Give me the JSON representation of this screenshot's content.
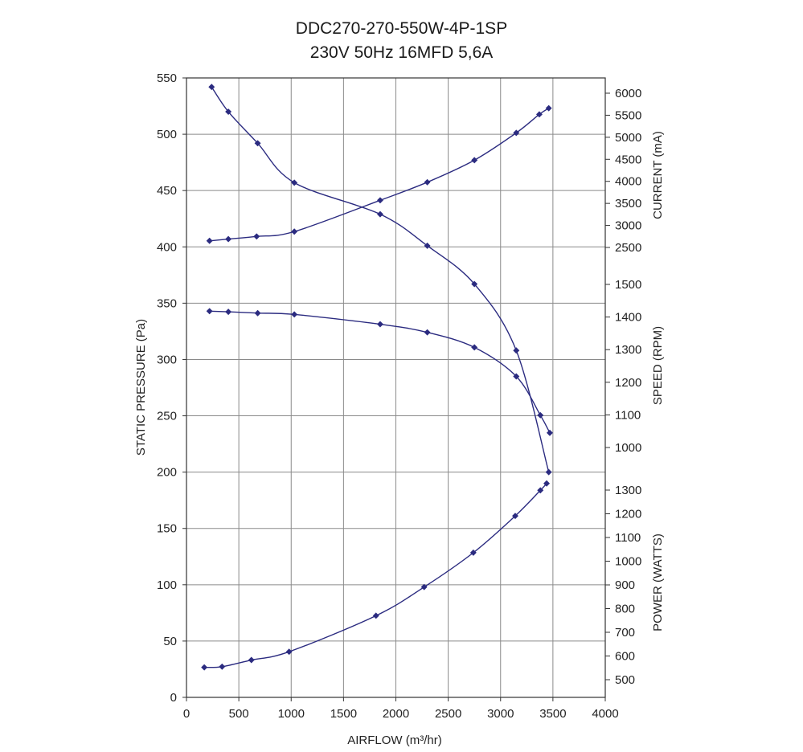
{
  "chart_data": {
    "type": "line",
    "title": "DDC270-270-550W-4P-1SP",
    "subtitle": "230V 50Hz 16MFD 5,6A",
    "xlabel": "AIRFLOW (m³/hr)",
    "ylabel": "STATIC PRESSURE (Pa)",
    "xlim": [
      0,
      4000
    ],
    "xticks": [
      0,
      500,
      1000,
      1500,
      2000,
      2500,
      3000,
      3500,
      4000
    ],
    "ylim": [
      0,
      550
    ],
    "yticks": [
      0,
      50,
      100,
      150,
      200,
      250,
      300,
      350,
      400,
      450,
      500,
      550
    ],
    "grid": true,
    "line_color": "#2b2b80",
    "right_axes": [
      {
        "label": "CURRENT (mA)",
        "range": [
          2500,
          6000
        ],
        "ticks": [
          2500,
          3000,
          3500,
          4000,
          4500,
          5000,
          5500,
          6000
        ]
      },
      {
        "label": "SPEED (RPM)",
        "range": [
          1000,
          1500
        ],
        "ticks": [
          1000,
          1100,
          1200,
          1300,
          1400,
          1500
        ]
      },
      {
        "label": "POWER (WATTS)",
        "range": [
          500,
          1300
        ],
        "ticks": [
          500,
          600,
          700,
          800,
          900,
          1000,
          1100,
          1200,
          1300
        ]
      }
    ],
    "series": [
      {
        "axis": "left",
        "x": [
          240,
          400,
          680,
          1030,
          1850,
          2300,
          2750,
          3150,
          3460
        ],
        "y": [
          542,
          520,
          492,
          457,
          429,
          401,
          367,
          308,
          200
        ]
      },
      {
        "axis": "current",
        "x": [
          220,
          400,
          670,
          1030,
          1850,
          2300,
          2750,
          3150,
          3370,
          3460
        ],
        "y": [
          2650,
          2690,
          2750,
          2860,
          3570,
          3980,
          4480,
          5100,
          5520,
          5660
        ]
      },
      {
        "axis": "speed",
        "x": [
          220,
          400,
          680,
          1030,
          1850,
          2300,
          2750,
          3150,
          3380,
          3470
        ],
        "y": [
          1418,
          1416,
          1412,
          1408,
          1378,
          1353,
          1307,
          1218,
          1099,
          1045
        ]
      },
      {
        "axis": "power",
        "x": [
          170,
          340,
          620,
          980,
          1810,
          2270,
          2740,
          3140,
          3380,
          3440
        ],
        "y": [
          552,
          555,
          583,
          618,
          770,
          891,
          1036,
          1191,
          1299,
          1328
        ]
      }
    ]
  }
}
